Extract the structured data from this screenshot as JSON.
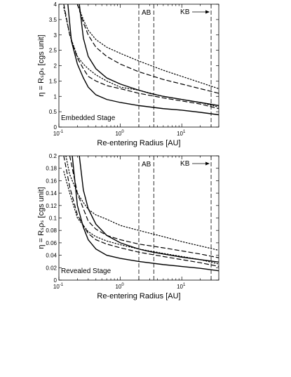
{
  "chart_data": [
    {
      "type": "line",
      "xscale": "log",
      "xlim": [
        0.1,
        40
      ],
      "ylim": [
        0,
        4
      ],
      "xticks": [
        0.1,
        1,
        10
      ],
      "xtick_labels": [
        [
          "10",
          "-1"
        ],
        [
          "10",
          "0"
        ],
        [
          "10",
          "1"
        ]
      ],
      "yticks": [
        0,
        0.5,
        1,
        1.5,
        2,
        2.5,
        3,
        3.5,
        4
      ],
      "ytick_labels": [
        "0",
        "0.5",
        "1",
        "1.5",
        "2",
        "2.5",
        "3",
        "3.5",
        "4"
      ],
      "xlabel": "Re-entering Radius [AU]",
      "ylabel": "η = Rₛρₛ [cgs unit]",
      "stage_label": "Embedded Stage",
      "vlines": [
        {
          "x": 2.0,
          "label": "AB"
        },
        {
          "x": 3.5,
          "label": ""
        },
        {
          "x": 30,
          "label": "KB"
        }
      ],
      "series": [
        {
          "style": "solid",
          "points": [
            [
              0.215,
              4.0
            ],
            [
              0.25,
              2.9
            ],
            [
              0.3,
              2.3
            ],
            [
              0.4,
              1.9
            ],
            [
              0.6,
              1.6
            ],
            [
              1,
              1.4
            ],
            [
              2,
              1.2
            ],
            [
              3,
              1.1
            ],
            [
              5,
              1.0
            ],
            [
              10,
              0.9
            ],
            [
              20,
              0.8
            ],
            [
              40,
              0.7
            ]
          ]
        },
        {
          "style": "solid",
          "points": [
            [
              0.14,
              4.0
            ],
            [
              0.16,
              2.8
            ],
            [
              0.2,
              2.05
            ],
            [
              0.25,
              1.6
            ],
            [
              0.3,
              1.3
            ],
            [
              0.4,
              1.05
            ],
            [
              0.6,
              0.9
            ],
            [
              1,
              0.8
            ],
            [
              2,
              0.7
            ],
            [
              5,
              0.6
            ],
            [
              10,
              0.55
            ],
            [
              20,
              0.48
            ],
            [
              40,
              0.4
            ]
          ]
        },
        {
          "style": "dashed",
          "points": [
            [
              0.2,
              4.0
            ],
            [
              0.25,
              3.4
            ],
            [
              0.3,
              3.0
            ],
            [
              0.4,
              2.6
            ],
            [
              0.6,
              2.3
            ],
            [
              1,
              2.05
            ],
            [
              2,
              1.8
            ],
            [
              5,
              1.55
            ],
            [
              10,
              1.4
            ],
            [
              20,
              1.25
            ],
            [
              40,
              1.1
            ]
          ]
        },
        {
          "style": "dashed",
          "points": [
            [
              0.12,
              4.0
            ],
            [
              0.15,
              3.0
            ],
            [
              0.2,
              2.25
            ],
            [
              0.25,
              1.9
            ],
            [
              0.3,
              1.65
            ],
            [
              0.4,
              1.5
            ],
            [
              0.6,
              1.35
            ],
            [
              1,
              1.25
            ],
            [
              2,
              1.1
            ],
            [
              5,
              0.95
            ],
            [
              10,
              0.85
            ],
            [
              20,
              0.75
            ],
            [
              40,
              0.6
            ]
          ]
        },
        {
          "style": "dotted",
          "points": [
            [
              0.2,
              4.0
            ],
            [
              0.25,
              3.5
            ],
            [
              0.3,
              3.15
            ],
            [
              0.4,
              2.85
            ],
            [
              0.6,
              2.6
            ],
            [
              1,
              2.4
            ],
            [
              2,
              2.15
            ],
            [
              5,
              1.85
            ],
            [
              10,
              1.65
            ],
            [
              20,
              1.45
            ],
            [
              40,
              1.25
            ]
          ]
        },
        {
          "style": "dotted",
          "points": [
            [
              0.12,
              3.9
            ],
            [
              0.15,
              3.0
            ],
            [
              0.2,
              2.3
            ],
            [
              0.25,
              2.05
            ],
            [
              0.3,
              1.9
            ],
            [
              0.4,
              1.7
            ],
            [
              0.6,
              1.5
            ],
            [
              1,
              1.3
            ],
            [
              2,
              1.2
            ],
            [
              5,
              1.0
            ],
            [
              10,
              0.9
            ],
            [
              20,
              0.8
            ],
            [
              40,
              0.65
            ]
          ]
        }
      ]
    },
    {
      "type": "line",
      "xscale": "log",
      "xlim": [
        0.1,
        40
      ],
      "ylim": [
        0,
        0.2
      ],
      "xticks": [
        0.1,
        1,
        10
      ],
      "xtick_labels": [
        [
          "10",
          "-1"
        ],
        [
          "10",
          "0"
        ],
        [
          "10",
          "1"
        ]
      ],
      "yticks": [
        0,
        0.02,
        0.04,
        0.06,
        0.08,
        0.1,
        0.12,
        0.14,
        0.16,
        0.18,
        0.2
      ],
      "ytick_labels": [
        "0",
        "0.02",
        "0.04",
        "0.06",
        "0.08",
        "0.1",
        "0.12",
        "0.14",
        "0.16",
        "0.18",
        "0.2"
      ],
      "xlabel": "Re-entering Radius [AU]",
      "ylabel": "η = Rₛρₛ [cgs unit]",
      "stage_label": "Revealed Stage",
      "vlines": [
        {
          "x": 2.0,
          "label": "AB"
        },
        {
          "x": 3.5,
          "label": ""
        },
        {
          "x": 30,
          "label": "KB"
        }
      ],
      "series": [
        {
          "style": "solid",
          "points": [
            [
              0.215,
              0.2
            ],
            [
              0.25,
              0.145
            ],
            [
              0.3,
              0.115
            ],
            [
              0.4,
              0.09
            ],
            [
              0.6,
              0.072
            ],
            [
              1,
              0.06
            ],
            [
              2,
              0.05
            ],
            [
              3,
              0.046
            ],
            [
              5,
              0.042
            ],
            [
              10,
              0.037
            ],
            [
              20,
              0.033
            ],
            [
              40,
              0.029
            ]
          ]
        },
        {
          "style": "solid",
          "points": [
            [
              0.165,
              0.2
            ],
            [
              0.2,
              0.12
            ],
            [
              0.25,
              0.085
            ],
            [
              0.3,
              0.065
            ],
            [
              0.4,
              0.05
            ],
            [
              0.6,
              0.04
            ],
            [
              1,
              0.035
            ],
            [
              2,
              0.03
            ],
            [
              5,
              0.025
            ],
            [
              10,
              0.022
            ],
            [
              20,
              0.019
            ],
            [
              40,
              0.015
            ]
          ]
        },
        {
          "style": "dashed",
          "points": [
            [
              0.15,
              0.2
            ],
            [
              0.2,
              0.14
            ],
            [
              0.25,
              0.115
            ],
            [
              0.3,
              0.095
            ],
            [
              0.4,
              0.082
            ],
            [
              0.6,
              0.072
            ],
            [
              1,
              0.065
            ],
            [
              2,
              0.058
            ],
            [
              5,
              0.052
            ],
            [
              10,
              0.047
            ],
            [
              20,
              0.042
            ],
            [
              40,
              0.036
            ]
          ]
        },
        {
          "style": "dashed",
          "points": [
            [
              0.12,
              0.2
            ],
            [
              0.15,
              0.15
            ],
            [
              0.2,
              0.105
            ],
            [
              0.25,
              0.088
            ],
            [
              0.3,
              0.075
            ],
            [
              0.4,
              0.065
            ],
            [
              0.6,
              0.058
            ],
            [
              1,
              0.052
            ],
            [
              2,
              0.045
            ],
            [
              5,
              0.038
            ],
            [
              10,
              0.033
            ],
            [
              20,
              0.028
            ],
            [
              40,
              0.022
            ]
          ]
        },
        {
          "style": "dotted",
          "points": [
            [
              0.13,
              0.2
            ],
            [
              0.15,
              0.17
            ],
            [
              0.2,
              0.14
            ],
            [
              0.25,
              0.125
            ],
            [
              0.3,
              0.114
            ],
            [
              0.4,
              0.105
            ],
            [
              0.6,
              0.098
            ],
            [
              1,
              0.088
            ],
            [
              2,
              0.08
            ],
            [
              5,
              0.07
            ],
            [
              10,
              0.062
            ],
            [
              20,
              0.055
            ],
            [
              40,
              0.048
            ]
          ]
        },
        {
          "style": "dotted",
          "points": [
            [
              0.12,
              0.175
            ],
            [
              0.15,
              0.14
            ],
            [
              0.2,
              0.1
            ],
            [
              0.25,
              0.088
            ],
            [
              0.3,
              0.078
            ],
            [
              0.4,
              0.07
            ],
            [
              0.6,
              0.063
            ],
            [
              1,
              0.057
            ],
            [
              2,
              0.05
            ],
            [
              5,
              0.043
            ],
            [
              10,
              0.038
            ],
            [
              20,
              0.033
            ],
            [
              40,
              0.026
            ]
          ]
        }
      ]
    }
  ]
}
